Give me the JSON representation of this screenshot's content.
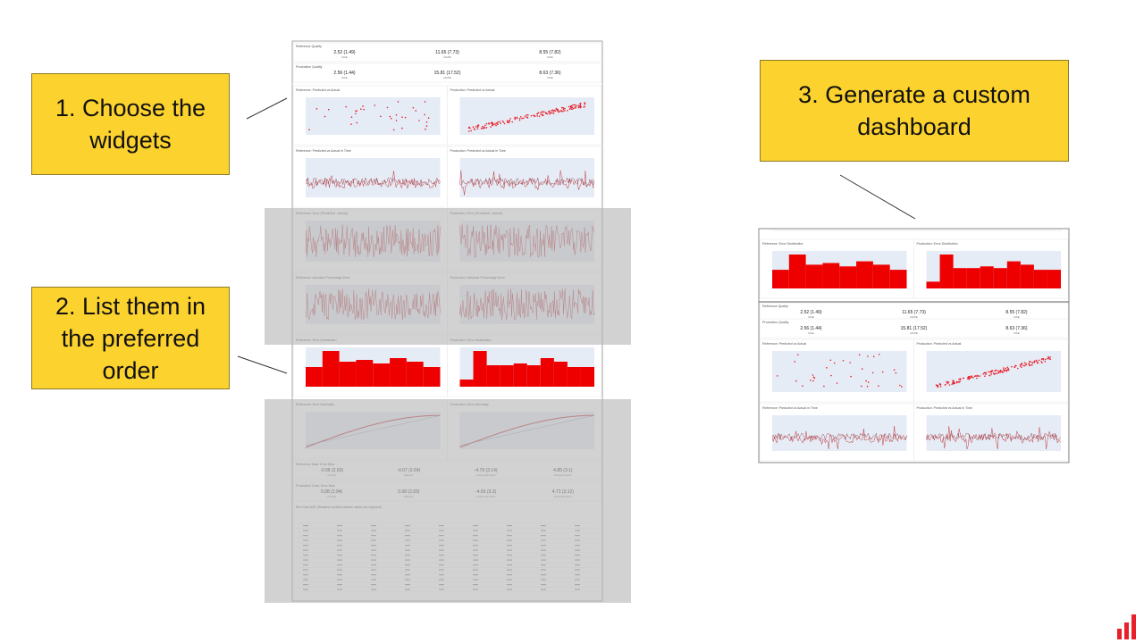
{
  "callouts": [
    "1. Choose the widgets",
    "2. List them in the preferred order",
    "3. Generate a custom dashboard"
  ],
  "quality": [
    {
      "title": "Reference Quality",
      "metrics": [
        {
          "value": "2.52 (1.49)",
          "label": "MAE"
        },
        {
          "value": "11.65 (7.73)",
          "label": "MAPE"
        },
        {
          "value": "8.55 (7.82)",
          "label": "MSE"
        }
      ]
    },
    {
      "title": "Production Quality",
      "metrics": [
        {
          "value": "2.56 (1.44)",
          "label": "MAE"
        },
        {
          "value": "15.81 (17.52)",
          "label": "MAPE"
        },
        {
          "value": "8.63 (7.36)",
          "label": "MSE"
        }
      ]
    }
  ],
  "widgets": [
    [
      "Reference: Predicted vs Actual",
      "Production: Predicted vs Actual"
    ],
    [
      "Reference: Predicted vs Actual in Time",
      "Production: Predicted vs Actual in Time"
    ],
    [
      "Reference: Error (Predicted - Actual)",
      "Production: Error (Predicted - Actual)"
    ],
    [
      "Reference: Absolute Percentage Error",
      "Production: Absolute Percentage Error"
    ],
    [
      "Reference: Error Distribution",
      "Production: Error Distribution"
    ],
    [
      "Reference: Error Normality",
      "Production: Error Normality"
    ]
  ],
  "bias": [
    {
      "title": "Reference Data: Error Bias",
      "metrics": [
        {
          "value": "-0.06 (2.93)",
          "label": "Overall"
        },
        {
          "value": "-0.07 (2.64)",
          "label": "Majority"
        },
        {
          "value": "-4.79 (3.14)",
          "label": "Underestimation"
        },
        {
          "value": "4.85 (3.1)",
          "label": "Overestimation"
        }
      ]
    },
    {
      "title": "Production Data: Error Bias",
      "metrics": [
        {
          "value": "0.08 (2.94)",
          "label": "Overall"
        },
        {
          "value": "0.08 (2.69)",
          "label": "Majority"
        },
        {
          "value": "-4.65 (3.2)",
          "label": "Underestimation"
        },
        {
          "value": "4.71 (3.12)",
          "label": "Overestimation"
        }
      ]
    }
  ],
  "shift_title": "Error bias shift: (Weakest condition feature values per segment)"
}
